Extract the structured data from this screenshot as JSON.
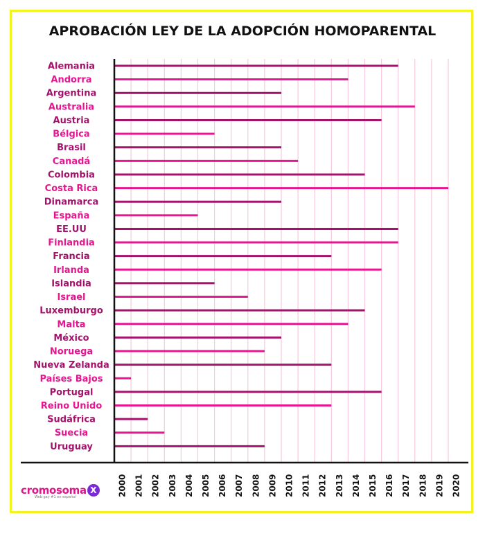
{
  "chart_data": {
    "type": "bar",
    "orientation": "horizontal",
    "title": "APROBACIÓN LEY DE LA ADOPCIÓN HOMOPARENTAL",
    "categories": [
      "Alemania",
      "Andorra",
      "Argentina",
      "Australia",
      "Austria",
      "Bélgica",
      "Brasil",
      "Canadá",
      "Colombia",
      "Costa Rica",
      "Dinamarca",
      "España",
      "EE.UU",
      "Finlandia",
      "Francia",
      "Irlanda",
      "Islandia",
      "Israel",
      "Luxemburgo",
      "Malta",
      "México",
      "Noruega",
      "Nueva Zelanda",
      "Países Bajos",
      "Portugal",
      "Reino Unido",
      "Sudáfrica",
      "Suecia",
      "Uruguay"
    ],
    "values": [
      2017,
      2014,
      2010,
      2018,
      2016,
      2006,
      2010,
      2011,
      2015,
      2020,
      2010,
      2005,
      2017,
      2017,
      2013,
      2016,
      2006,
      2008,
      2015,
      2014,
      2010,
      2009,
      2013,
      2001,
      2016,
      2013,
      2002,
      2003,
      2009
    ],
    "xlim": [
      2000,
      2020
    ],
    "xticks": [
      2000,
      2001,
      2002,
      2003,
      2004,
      2005,
      2006,
      2007,
      2008,
      2009,
      2010,
      2011,
      2012,
      2013,
      2014,
      2015,
      2016,
      2017,
      2018,
      2019,
      2020
    ],
    "grid": true,
    "colors": {
      "odd": "#a3126b",
      "even": "#e5168f",
      "grid": "#f6c9de",
      "axis": "#111111"
    }
  },
  "logo": {
    "text": "cromosoma",
    "x": "X",
    "tagline": "Web gay #1 en español"
  }
}
